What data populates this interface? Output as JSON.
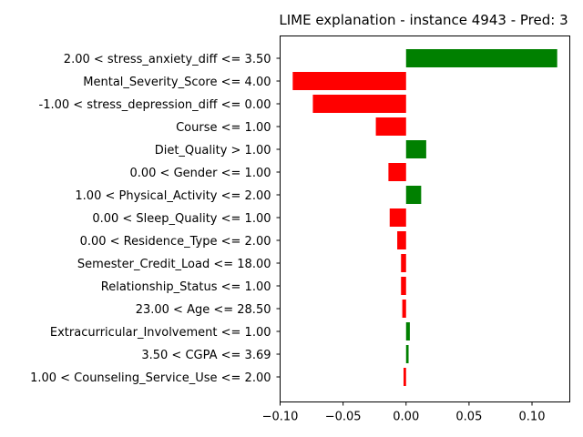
{
  "chart_data": {
    "type": "bar",
    "orientation": "horizontal",
    "title": "LIME explanation - instance 4943 - Pred: 3",
    "xlabel": "",
    "ylabel": "",
    "xlim": [
      -0.1,
      0.13
    ],
    "xticks": [
      -0.1,
      -0.05,
      0.0,
      0.05,
      0.1
    ],
    "xtick_labels": [
      "−0.10",
      "−0.05",
      "0.00",
      "0.05",
      "0.10"
    ],
    "grid": false,
    "legend": "none",
    "colors": {
      "positive": "#008000",
      "negative": "#ff0000"
    },
    "categories": [
      "2.00 < stress_anxiety_diff <= 3.50",
      "Mental_Severity_Score <= 4.00",
      "-1.00 < stress_depression_diff <= 0.00",
      "Course <= 1.00",
      "Diet_Quality > 1.00",
      "0.00 < Gender <= 1.00",
      "1.00 < Physical_Activity <= 2.00",
      "0.00 < Sleep_Quality <= 1.00",
      "0.00 < Residence_Type <= 2.00",
      "Semester_Credit_Load <= 18.00",
      "Relationship_Status <= 1.00",
      "23.00 < Age <= 28.50",
      "Extracurricular_Involvement <= 1.00",
      "3.50 < CGPA <= 3.69",
      "1.00 < Counseling_Service_Use <= 2.00"
    ],
    "values": [
      0.12,
      -0.09,
      -0.074,
      -0.024,
      0.016,
      -0.014,
      0.012,
      -0.013,
      -0.007,
      -0.004,
      -0.004,
      -0.003,
      0.003,
      0.002,
      -0.002
    ]
  }
}
